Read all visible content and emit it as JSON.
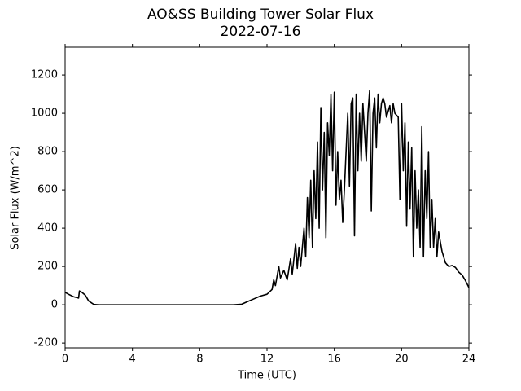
{
  "chart_data": {
    "type": "line",
    "title": "AO&SS Building Tower Solar Flux",
    "subtitle": "2022-07-16",
    "xlabel": "Time (UTC)",
    "ylabel": "Solar Flux (W/m^2)",
    "xlim": [
      0,
      24
    ],
    "xticks": [
      0,
      4,
      8,
      12,
      16,
      20,
      24
    ],
    "ylim": [
      -225,
      1345
    ],
    "yticks": [
      -200,
      0,
      200,
      400,
      600,
      800,
      1000,
      1200
    ],
    "grid": false,
    "series": [
      {
        "name": "Solar Flux",
        "color": "#000000",
        "x": [
          0,
          0.2,
          0.5,
          0.8,
          0.85,
          1.0,
          1.2,
          1.4,
          1.7,
          2.0,
          10.0,
          10.5,
          10.8,
          11.2,
          11.6,
          12.0,
          12.3,
          12.4,
          12.5,
          12.7,
          12.8,
          13.0,
          13.2,
          13.4,
          13.5,
          13.7,
          13.8,
          13.9,
          14.0,
          14.2,
          14.3,
          14.4,
          14.5,
          14.6,
          14.7,
          14.8,
          14.9,
          15.0,
          15.1,
          15.2,
          15.3,
          15.4,
          15.5,
          15.6,
          15.7,
          15.8,
          15.9,
          16.0,
          16.1,
          16.2,
          16.3,
          16.4,
          16.5,
          16.6,
          16.8,
          16.9,
          17.0,
          17.1,
          17.2,
          17.3,
          17.4,
          17.5,
          17.6,
          17.7,
          17.9,
          18.0,
          18.1,
          18.2,
          18.3,
          18.4,
          18.5,
          18.6,
          18.7,
          18.8,
          18.9,
          19.0,
          19.1,
          19.3,
          19.4,
          19.5,
          19.6,
          19.8,
          19.9,
          20.0,
          20.1,
          20.2,
          20.3,
          20.4,
          20.5,
          20.6,
          20.7,
          20.8,
          20.9,
          21.0,
          21.1,
          21.2,
          21.3,
          21.4,
          21.5,
          21.6,
          21.7,
          21.8,
          21.9,
          22.0,
          22.1,
          22.2,
          22.4,
          22.6,
          22.8,
          23.0,
          23.2,
          23.4,
          23.6,
          23.8,
          24.0
        ],
        "values": [
          65,
          55,
          42,
          35,
          72,
          65,
          50,
          20,
          2,
          0,
          0,
          3,
          15,
          30,
          45,
          55,
          80,
          130,
          100,
          200,
          140,
          180,
          130,
          240,
          160,
          320,
          190,
          300,
          200,
          400,
          250,
          560,
          350,
          650,
          300,
          700,
          450,
          850,
          400,
          1030,
          600,
          900,
          350,
          950,
          780,
          1100,
          700,
          1110,
          520,
          800,
          550,
          650,
          430,
          600,
          1000,
          620,
          1050,
          1080,
          360,
          1100,
          700,
          1000,
          750,
          1050,
          750,
          1000,
          1120,
          490,
          1000,
          1080,
          820,
          1100,
          950,
          1050,
          1080,
          1050,
          980,
          1040,
          950,
          1050,
          1000,
          980,
          550,
          1050,
          700,
          950,
          410,
          850,
          500,
          820,
          250,
          700,
          400,
          600,
          300,
          930,
          250,
          700,
          450,
          800,
          300,
          550,
          300,
          450,
          250,
          380,
          280,
          220,
          200,
          205,
          195,
          170,
          155,
          125,
          90
        ]
      }
    ]
  }
}
